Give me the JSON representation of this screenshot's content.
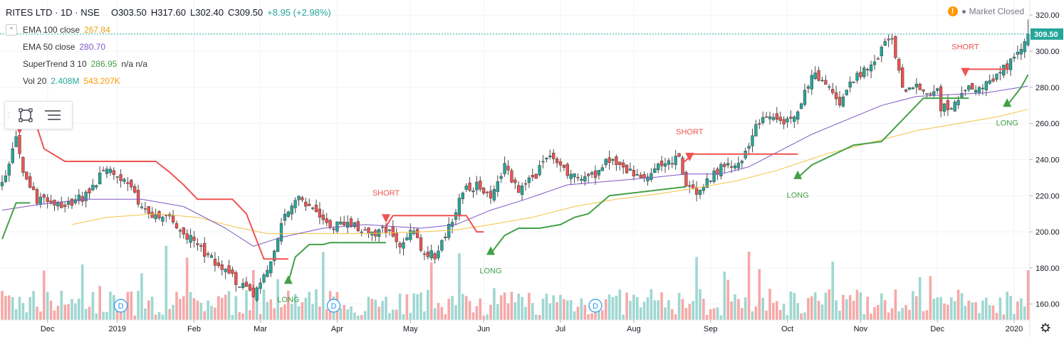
{
  "header": {
    "symbol": "RITES LTD · 1D · NSE",
    "open": "O303.50",
    "high": "H317.60",
    "low": "L302.40",
    "close": "C309.50",
    "change": "+8.95 (+2.98%)"
  },
  "indicators": [
    {
      "name": "EMA 100 close",
      "value": "267.84",
      "color": "#e8b923"
    },
    {
      "name": "EMA 50 close",
      "value": "280.70",
      "color": "#7e57c2"
    },
    {
      "name": "SuperTrend 3 10",
      "value": "286.95",
      "extra": "n/a  n/a",
      "color": "#43a047"
    },
    {
      "name": "Vol 20",
      "value": "2.408M",
      "value2": "543.207K",
      "color": "#26a69a",
      "color2": "#ff9800"
    }
  ],
  "status": {
    "text": "Market Closed",
    "warn_icon": "warning-icon"
  },
  "toolbox": {
    "icons": [
      "select-rectangle-icon",
      "object-tree-icon"
    ]
  },
  "chart_data": {
    "type": "candlestick",
    "symbol": "RITES LTD",
    "interval": "1D",
    "exchange": "NSE",
    "last_price": "309.50",
    "y_ticks": [
      160,
      180,
      200,
      220,
      240,
      260,
      280,
      300,
      320
    ],
    "ylim": [
      152,
      326
    ],
    "x_labels": [
      "Dec",
      "2019",
      "Feb",
      "Mar",
      "Apr",
      "May",
      "Jun",
      "Jul",
      "Aug",
      "Sep",
      "Oct",
      "Nov",
      "Dec",
      "2020"
    ],
    "x_label_idx": [
      13,
      33,
      55,
      74,
      96,
      117,
      138,
      160,
      181,
      203,
      225,
      246,
      268,
      290
    ],
    "bars": 295,
    "close_anchors": [
      [
        0,
        225
      ],
      [
        4,
        255
      ],
      [
        6,
        232
      ],
      [
        10,
        218
      ],
      [
        18,
        215
      ],
      [
        24,
        220
      ],
      [
        30,
        236
      ],
      [
        36,
        225
      ],
      [
        42,
        210
      ],
      [
        48,
        208
      ],
      [
        56,
        192
      ],
      [
        64,
        178
      ],
      [
        70,
        168
      ],
      [
        72,
        166
      ],
      [
        76,
        178
      ],
      [
        80,
        205
      ],
      [
        85,
        218
      ],
      [
        89,
        212
      ],
      [
        94,
        202
      ],
      [
        99,
        206
      ],
      [
        105,
        198
      ],
      [
        110,
        202
      ],
      [
        114,
        194
      ],
      [
        118,
        200
      ],
      [
        121,
        188
      ],
      [
        124,
        187
      ],
      [
        128,
        202
      ],
      [
        132,
        222
      ],
      [
        136,
        226
      ],
      [
        140,
        218
      ],
      [
        144,
        236
      ],
      [
        148,
        224
      ],
      [
        153,
        232
      ],
      [
        157,
        242
      ],
      [
        162,
        232
      ],
      [
        166,
        228
      ],
      [
        170,
        232
      ],
      [
        174,
        240
      ],
      [
        178,
        236
      ],
      [
        182,
        232
      ],
      [
        186,
        232
      ],
      [
        190,
        240
      ],
      [
        194,
        240
      ],
      [
        196,
        223
      ],
      [
        200,
        222
      ],
      [
        204,
        232
      ],
      [
        208,
        238
      ],
      [
        212,
        238
      ],
      [
        216,
        258
      ],
      [
        220,
        264
      ],
      [
        224,
        262
      ],
      [
        228,
        265
      ],
      [
        232,
        288
      ],
      [
        236,
        282
      ],
      [
        240,
        272
      ],
      [
        244,
        285
      ],
      [
        248,
        290
      ],
      [
        251,
        296
      ],
      [
        253,
        308
      ],
      [
        255,
        305
      ],
      [
        258,
        280
      ],
      [
        261,
        280
      ],
      [
        265,
        278
      ],
      [
        268,
        278
      ],
      [
        269,
        268
      ],
      [
        273,
        270
      ],
      [
        277,
        279
      ],
      [
        280,
        280
      ],
      [
        284,
        284
      ],
      [
        287,
        290
      ],
      [
        290,
        296
      ],
      [
        292,
        302
      ],
      [
        294,
        309.5
      ]
    ],
    "ema50_anchors": [
      [
        0,
        212
      ],
      [
        10,
        215
      ],
      [
        24,
        218
      ],
      [
        40,
        218
      ],
      [
        52,
        214
      ],
      [
        64,
        202
      ],
      [
        72,
        192
      ],
      [
        80,
        197
      ],
      [
        92,
        202
      ],
      [
        104,
        204
      ],
      [
        120,
        202
      ],
      [
        130,
        204
      ],
      [
        140,
        212
      ],
      [
        150,
        218
      ],
      [
        162,
        226
      ],
      [
        174,
        228
      ],
      [
        186,
        230
      ],
      [
        196,
        232
      ],
      [
        206,
        232
      ],
      [
        214,
        236
      ],
      [
        222,
        244
      ],
      [
        232,
        254
      ],
      [
        242,
        262
      ],
      [
        252,
        270
      ],
      [
        262,
        275
      ],
      [
        272,
        276
      ],
      [
        282,
        277
      ],
      [
        294,
        280.7
      ]
    ],
    "ema100_anchors": [
      [
        20,
        204
      ],
      [
        30,
        208
      ],
      [
        44,
        210
      ],
      [
        56,
        208
      ],
      [
        66,
        203
      ],
      [
        76,
        199
      ],
      [
        90,
        199
      ],
      [
        104,
        199
      ],
      [
        120,
        200
      ],
      [
        130,
        201
      ],
      [
        140,
        204
      ],
      [
        152,
        208
      ],
      [
        164,
        214
      ],
      [
        176,
        218
      ],
      [
        188,
        221
      ],
      [
        198,
        224
      ],
      [
        210,
        228
      ],
      [
        222,
        234
      ],
      [
        236,
        243
      ],
      [
        250,
        250
      ],
      [
        262,
        256
      ],
      [
        274,
        260
      ],
      [
        286,
        264
      ],
      [
        294,
        267.84
      ]
    ],
    "supertrend": {
      "short_segments": [
        [
          [
            5,
            258
          ],
          [
            10,
            258
          ],
          [
            12,
            246
          ],
          [
            18,
            239
          ],
          [
            44,
            239
          ],
          [
            48,
            233
          ],
          [
            52,
            226
          ],
          [
            56,
            218
          ],
          [
            66,
            218
          ],
          [
            70,
            210
          ],
          [
            75,
            185
          ],
          [
            82,
            185
          ]
        ],
        [
          [
            110,
            203
          ],
          [
            112,
            209
          ],
          [
            133,
            209
          ],
          [
            136,
            200
          ],
          [
            138,
            200
          ]
        ],
        [
          [
            195,
            238
          ],
          [
            198,
            243
          ],
          [
            228,
            243
          ]
        ],
        [
          [
            275,
            290
          ],
          [
            277,
            290
          ],
          [
            288,
            290
          ]
        ]
      ],
      "long_segments": [
        [
          [
            0,
            196
          ],
          [
            4,
            216
          ],
          [
            8,
            216
          ]
        ],
        [
          [
            82,
            172
          ],
          [
            84,
            186
          ],
          [
            88,
            193
          ],
          [
            92,
            193
          ],
          [
            94,
            194
          ],
          [
            110,
            194
          ]
        ],
        [
          [
            140,
            188
          ],
          [
            144,
            198
          ],
          [
            148,
            202
          ],
          [
            154,
            202
          ],
          [
            160,
            204
          ],
          [
            164,
            208
          ],
          [
            168,
            210
          ],
          [
            174,
            220
          ],
          [
            196,
            225
          ]
        ],
        [
          [
            228,
            230
          ],
          [
            232,
            237
          ],
          [
            244,
            248
          ],
          [
            252,
            250
          ],
          [
            264,
            274
          ],
          [
            277,
            274
          ]
        ],
        [
          [
            288,
            270
          ],
          [
            292,
            280
          ],
          [
            294,
            287
          ]
        ]
      ],
      "signals": [
        {
          "type": "SHORT",
          "bar": 5,
          "price": 258
        },
        {
          "type": "LONG",
          "bar": 82,
          "price": 172
        },
        {
          "type": "SHORT",
          "bar": 110,
          "price": 209
        },
        {
          "type": "LONG",
          "bar": 140,
          "price": 188
        },
        {
          "type": "SHORT",
          "bar": 197,
          "price": 243
        },
        {
          "type": "LONG",
          "bar": 228,
          "price": 230
        },
        {
          "type": "SHORT",
          "bar": 276,
          "price": 290
        },
        {
          "type": "LONG",
          "bar": 288,
          "price": 270
        }
      ]
    },
    "volume": {
      "last": "2.408M",
      "ma": "543.207K"
    },
    "dividend_markers": [
      {
        "label": "D",
        "bar": 34
      },
      {
        "label": "D",
        "bar": 95
      },
      {
        "label": "D",
        "bar": 170
      }
    ],
    "colors": {
      "up": "#26a69a",
      "down": "#ef5350",
      "ema50": "#7e57c2",
      "ema100": "#f5c242",
      "st_long": "#43a047",
      "st_short": "#ef5350",
      "vol_up": "#9fd7d1",
      "vol_down": "#f5a9a7",
      "grid": "#f0f3fa"
    }
  }
}
